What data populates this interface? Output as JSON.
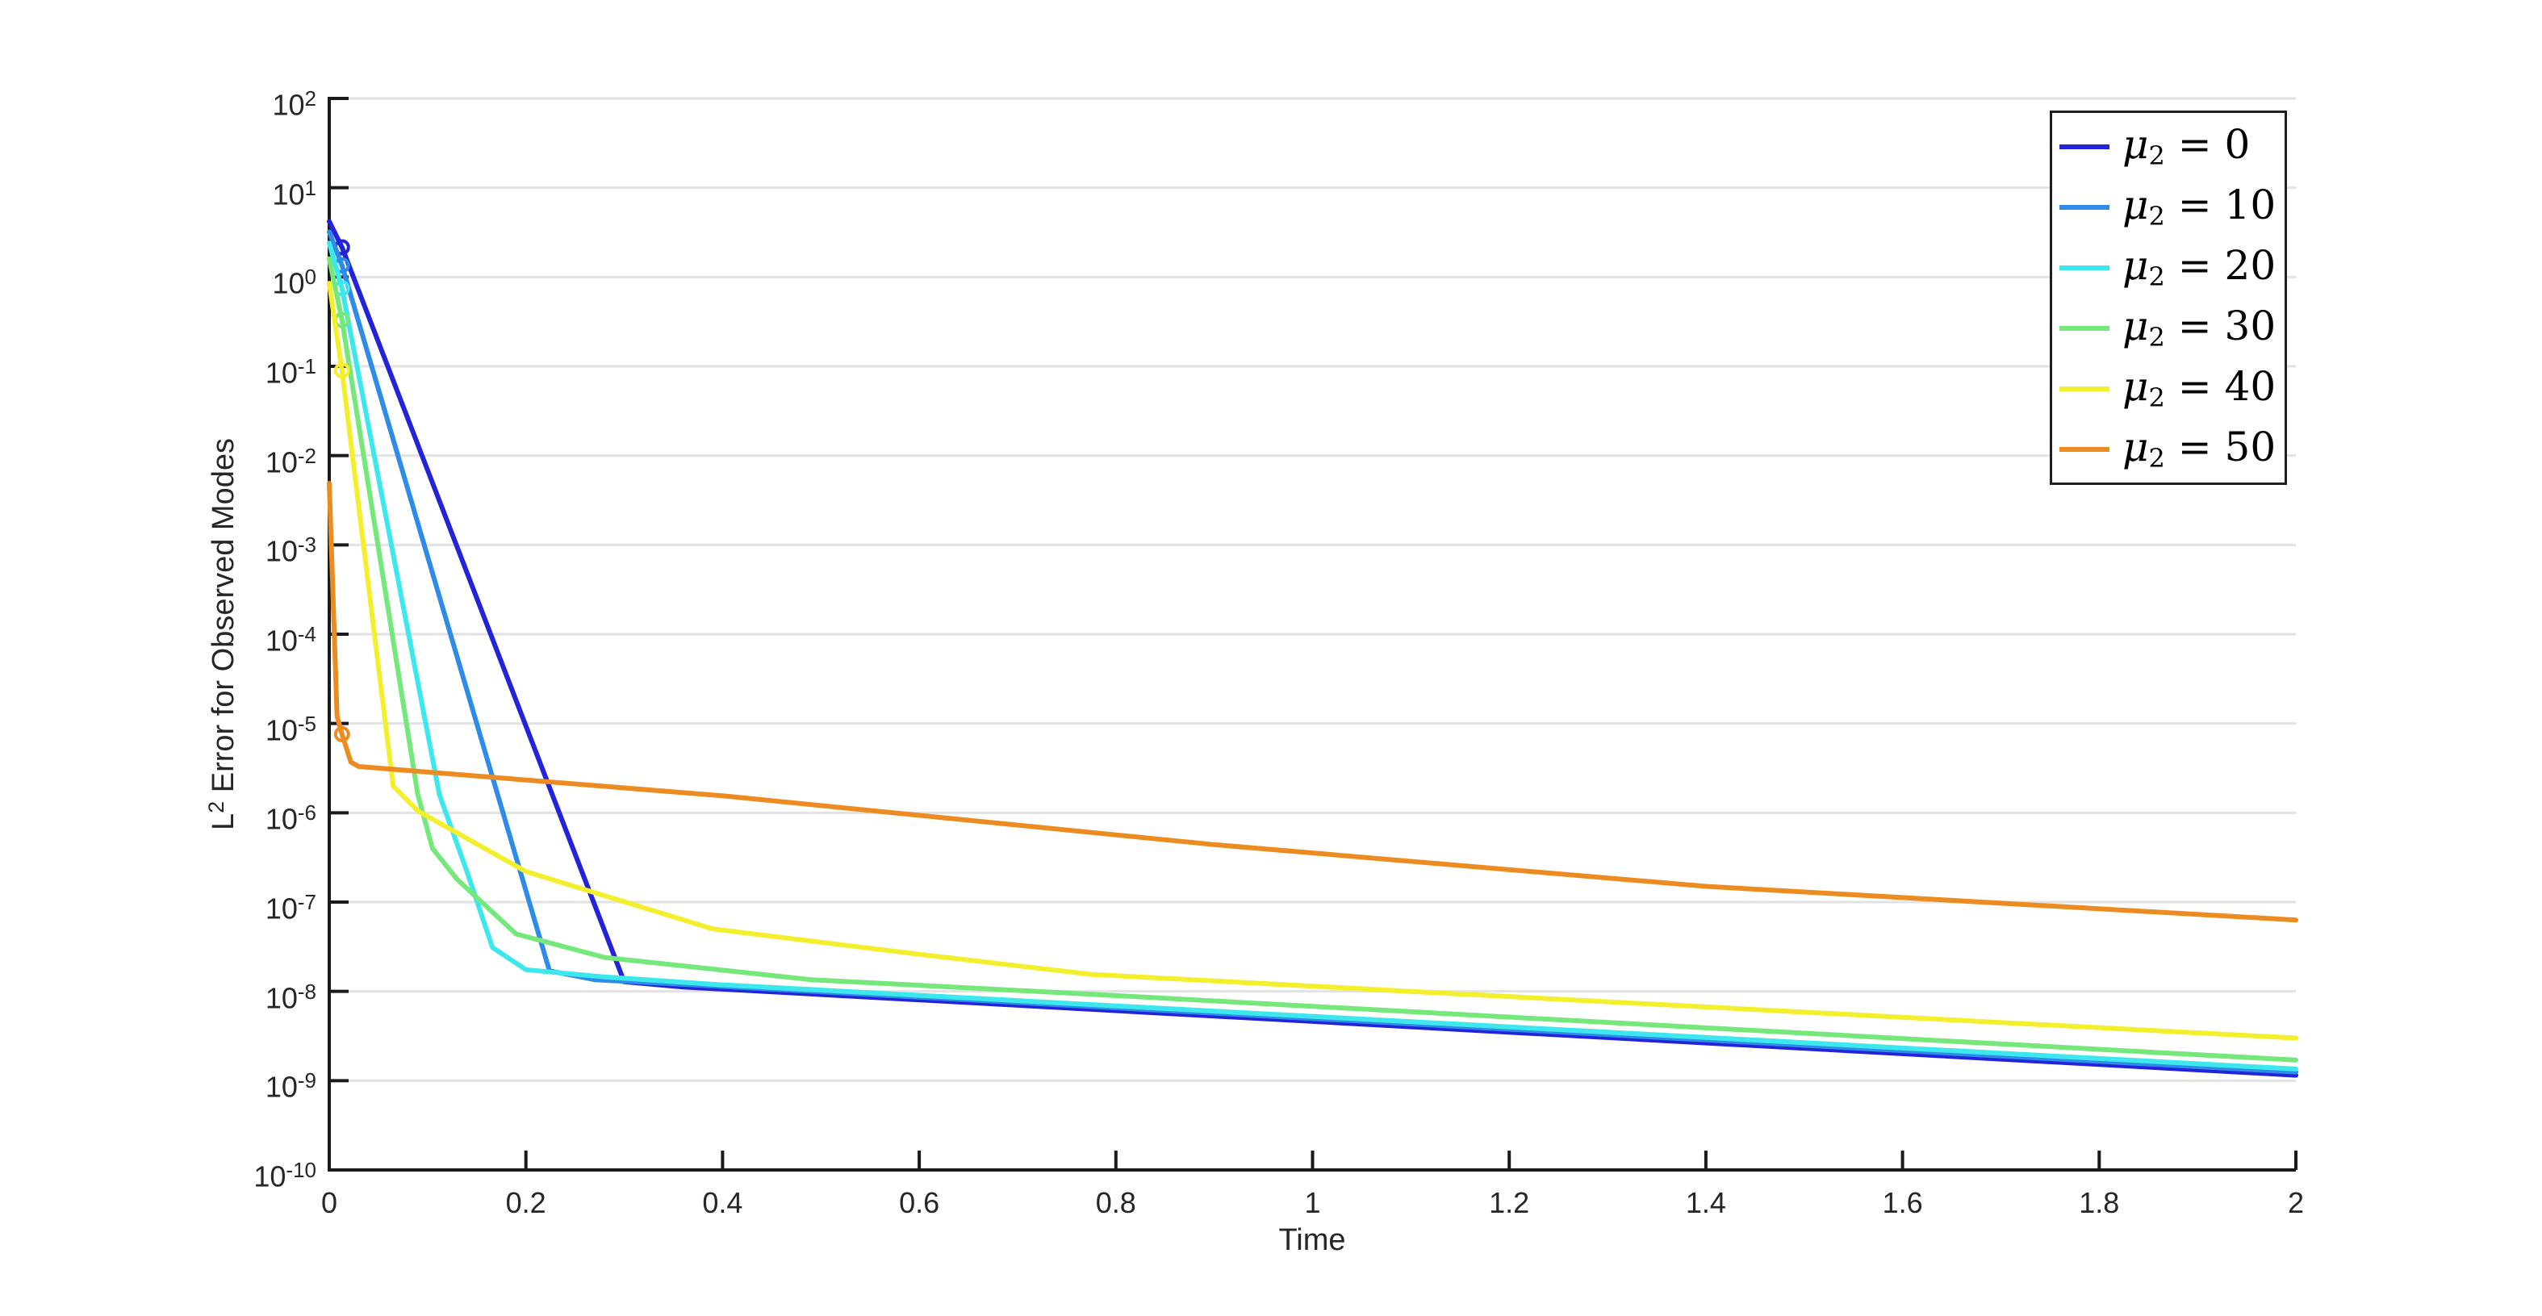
{
  "chart_data": {
    "type": "line",
    "title": "",
    "xlabel": "Time",
    "ylabel": "L² Error for Observed Modes",
    "x_axis": {
      "min": 0,
      "max": 2,
      "tick_values": [
        0,
        0.2,
        0.4,
        0.6,
        0.8,
        1,
        1.2,
        1.4,
        1.6,
        1.8,
        2
      ],
      "tick_labels": [
        "0",
        "0.2",
        "0.4",
        "0.6",
        "0.8",
        "1",
        "1.2",
        "1.4",
        "1.6",
        "1.8",
        "2"
      ]
    },
    "y_axis": {
      "scale": "log10",
      "min_exponent": -10,
      "max_exponent": 2,
      "tick_exponents": [
        2,
        1,
        0,
        -1,
        -2,
        -3,
        -4,
        -5,
        -6,
        -7,
        -8,
        -9,
        -10
      ]
    },
    "grid": "horizontal-major-only",
    "legend_position": "top-right",
    "series": [
      {
        "name": "μ₂ = 0",
        "color": "#2323d9",
        "marker": "circle",
        "marker_point": [
          0.013,
          2.15
        ],
        "points": [
          [
            0,
            4.2
          ],
          [
            0.013,
            2.15
          ],
          [
            0.3,
            1.28e-08
          ],
          [
            0.36,
            1.12e-08
          ],
          [
            2,
            1.15e-09
          ]
        ]
      },
      {
        "name": "μ₂ = 10",
        "color": "#2e8ce8",
        "marker": "circle",
        "marker_point": [
          0.013,
          1.35
        ],
        "points": [
          [
            0,
            3.2
          ],
          [
            0.013,
            1.35
          ],
          [
            0.224,
            1.7e-08
          ],
          [
            0.27,
            1.35e-08
          ],
          [
            0.39,
            1.15e-08
          ],
          [
            2,
            1.25e-09
          ]
        ]
      },
      {
        "name": "μ₂ = 20",
        "color": "#3ce8ee",
        "marker": "circle",
        "marker_point": [
          0.013,
          0.75
        ],
        "points": [
          [
            0,
            2.4
          ],
          [
            0.013,
            0.75
          ],
          [
            0.112,
            1.6e-06
          ],
          [
            0.14,
            2.2e-07
          ],
          [
            0.166,
            3.1e-08
          ],
          [
            0.2,
            1.75e-08
          ],
          [
            0.28,
            1.45e-08
          ],
          [
            0.39,
            1.2e-08
          ],
          [
            2,
            1.35e-09
          ]
        ]
      },
      {
        "name": "μ₂ = 30",
        "color": "#74e87a",
        "marker": "circle",
        "marker_point": [
          0.013,
          0.33
        ],
        "points": [
          [
            0,
            1.6
          ],
          [
            0.013,
            0.33
          ],
          [
            0.09,
            1.6e-06
          ],
          [
            0.105,
            4e-07
          ],
          [
            0.13,
            1.8e-07
          ],
          [
            0.19,
            4.4e-08
          ],
          [
            0.28,
            2.4e-08
          ],
          [
            0.49,
            1.35e-08
          ],
          [
            0.775,
            9.3e-09
          ],
          [
            2,
            1.7e-09
          ]
        ]
      },
      {
        "name": "μ₂ = 40",
        "color": "#f3ef2d",
        "marker": "circle",
        "marker_point": [
          0.013,
          0.09
        ],
        "points": [
          [
            0,
            0.85
          ],
          [
            0.013,
            0.09
          ],
          [
            0.065,
            2e-06
          ],
          [
            0.09,
            1.05e-06
          ],
          [
            0.2,
            2.2e-07
          ],
          [
            0.39,
            5e-08
          ],
          [
            0.6,
            2.6e-08
          ],
          [
            0.775,
            1.55e-08
          ],
          [
            1.1,
            1e-08
          ],
          [
            2,
            3e-09
          ]
        ]
      },
      {
        "name": "μ₂ = 50",
        "color": "#ec8c20",
        "marker": "circle",
        "marker_point": [
          0.013,
          7.6e-06
        ],
        "points": [
          [
            0,
            0.0049
          ],
          [
            0.008,
            1.2e-05
          ],
          [
            0.013,
            7.6e-06
          ],
          [
            0.022,
            3.7e-06
          ],
          [
            0.03,
            3.3e-06
          ],
          [
            0.4,
            1.55e-06
          ],
          [
            0.9,
            4.4e-07
          ],
          [
            1.4,
            1.5e-07
          ],
          [
            2,
            6.3e-08
          ]
        ]
      }
    ]
  },
  "colors": {
    "background": "#ffffff",
    "axis": "#1a1a1a",
    "grid": "#e2e2e2",
    "tick_text": "#262626",
    "legend_border": "#1f1f1f"
  }
}
